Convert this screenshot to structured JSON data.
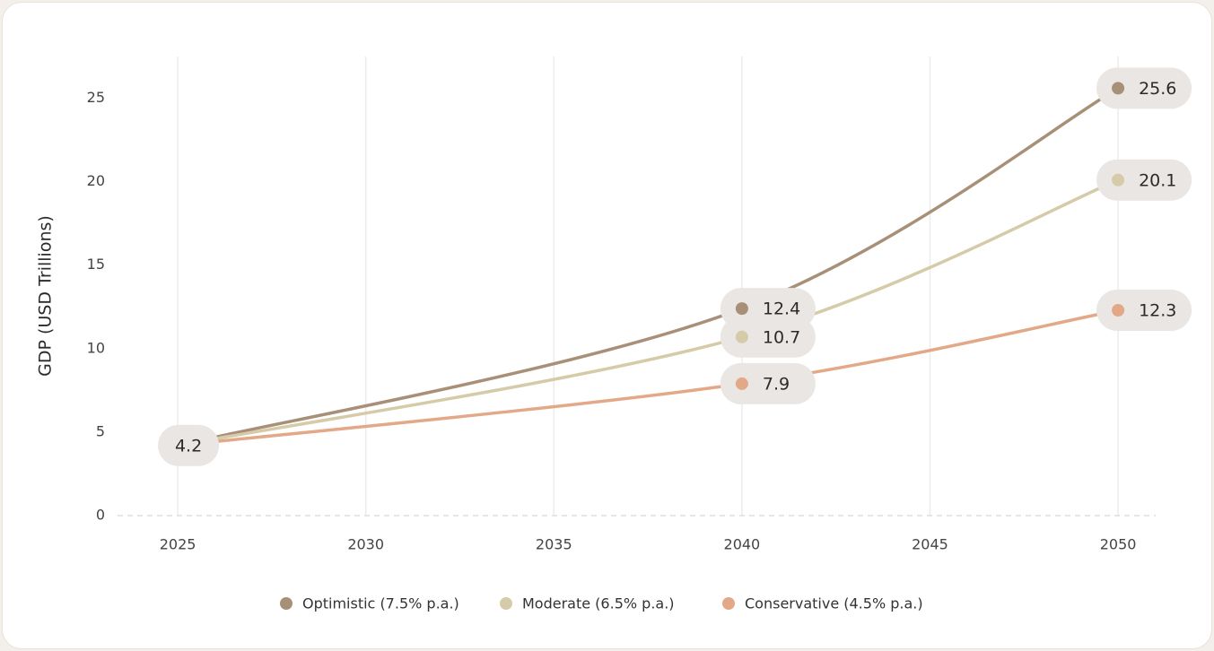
{
  "chart_data": {
    "type": "line",
    "y_label": "GDP (USD Trillions)",
    "x": [
      2025,
      2040,
      2050
    ],
    "series": [
      {
        "name": "Optimistic (7.5% p.a.)",
        "color": "#a89078",
        "values": [
          4.2,
          12.4,
          25.6
        ]
      },
      {
        "name": "Moderate (6.5% p.a.)",
        "color": "#d5cba8",
        "values": [
          4.2,
          10.7,
          20.1
        ]
      },
      {
        "name": "Conservative (4.5% p.a.)",
        "color": "#e3a888",
        "values": [
          4.2,
          7.9,
          12.3
        ]
      }
    ],
    "xlim": [
      2023.4,
      2051
    ],
    "xticks": [
      2025,
      2030,
      2035,
      2040,
      2045,
      2050
    ],
    "ylim": [
      0,
      27.5
    ],
    "yticks": [
      0,
      5,
      10,
      15,
      20,
      25
    ],
    "grid": true,
    "legend": "bottom"
  }
}
